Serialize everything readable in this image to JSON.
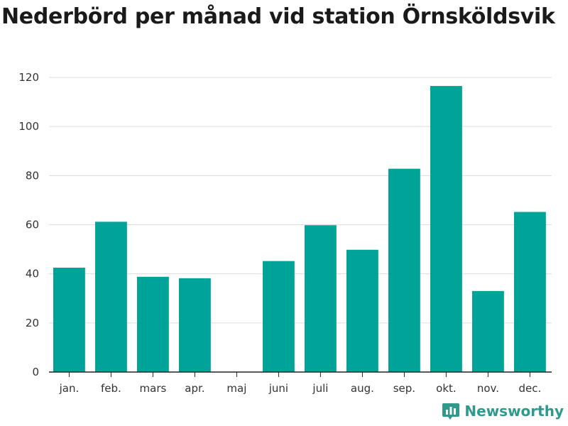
{
  "title": "Nederbörd per månad vid station Örnsköldsvik",
  "brand": {
    "name": "Newsworthy",
    "icon": "newsworthy-logo-icon",
    "color": "#2f9a8c"
  },
  "colors": {
    "bar": "#00a398",
    "grid": "#dcdcdc",
    "axis": "#222222"
  },
  "chart_data": {
    "type": "bar",
    "title": "Nederbörd per månad vid station Örnsköldsvik",
    "categories": [
      "jan.",
      "feb.",
      "mars",
      "apr.",
      "maj",
      "juni",
      "juli",
      "aug.",
      "sep.",
      "okt.",
      "nov.",
      "dec."
    ],
    "values": [
      42.5,
      61.2,
      38.8,
      38.2,
      0,
      45.2,
      59.8,
      49.8,
      82.8,
      116.5,
      33.0,
      65.2
    ],
    "y_ticks": [
      0,
      20,
      40,
      60,
      80,
      100,
      120
    ],
    "ylim": [
      0,
      120
    ],
    "grid": true,
    "xlabel": "",
    "ylabel": ""
  }
}
